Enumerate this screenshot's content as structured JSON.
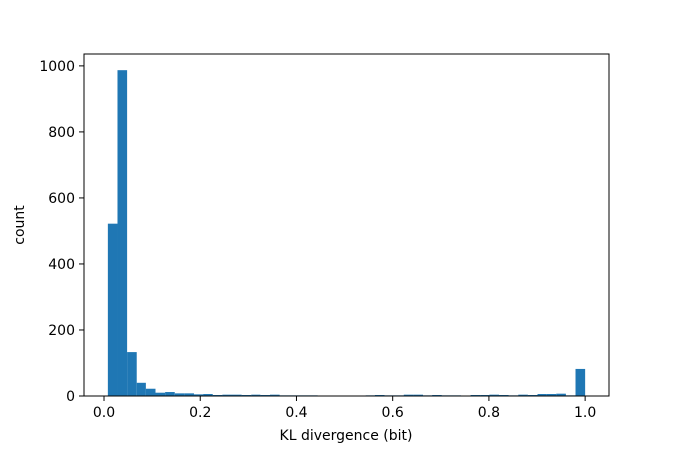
{
  "chart_data": {
    "type": "histogram",
    "xlabel": "KL divergence (bit)",
    "ylabel": "count",
    "color": "#1f77b4",
    "bins": [
      0.008,
      0.028,
      0.048,
      0.068,
      0.087,
      0.107,
      0.127,
      0.147,
      0.167,
      0.187,
      0.206,
      0.226,
      0.246,
      0.266,
      0.286,
      0.306,
      0.325,
      0.345,
      0.365,
      0.385,
      0.405,
      0.425,
      0.444,
      0.464,
      0.484,
      0.504,
      0.524,
      0.544,
      0.563,
      0.583,
      0.603,
      0.623,
      0.643,
      0.663,
      0.682,
      0.702,
      0.722,
      0.742,
      0.762,
      0.782,
      0.801,
      0.821,
      0.841,
      0.861,
      0.881,
      0.901,
      0.92,
      0.94,
      0.96,
      0.98,
      1.0
    ],
    "counts": [
      522,
      987,
      133,
      40,
      22,
      10,
      12,
      8,
      8,
      5,
      6,
      3,
      4,
      4,
      3,
      4,
      3,
      4,
      2,
      2,
      2,
      2,
      1,
      1,
      1,
      1,
      1,
      2,
      3,
      2,
      2,
      4,
      4,
      2,
      3,
      2,
      2,
      1,
      3,
      3,
      4,
      3,
      2,
      4,
      3,
      6,
      6,
      7,
      2,
      82
    ],
    "xlim": [
      -0.0416,
      1.0496
    ],
    "ylim": [
      0,
      1036
    ],
    "xticks": [
      {
        "value": 0,
        "label": "0.0"
      },
      0.2,
      0.4,
      0.6,
      0.8,
      {
        "value": 1,
        "label": "1.0"
      }
    ],
    "yticks": [
      0,
      200,
      400,
      600,
      800,
      1000
    ],
    "grid": false
  }
}
